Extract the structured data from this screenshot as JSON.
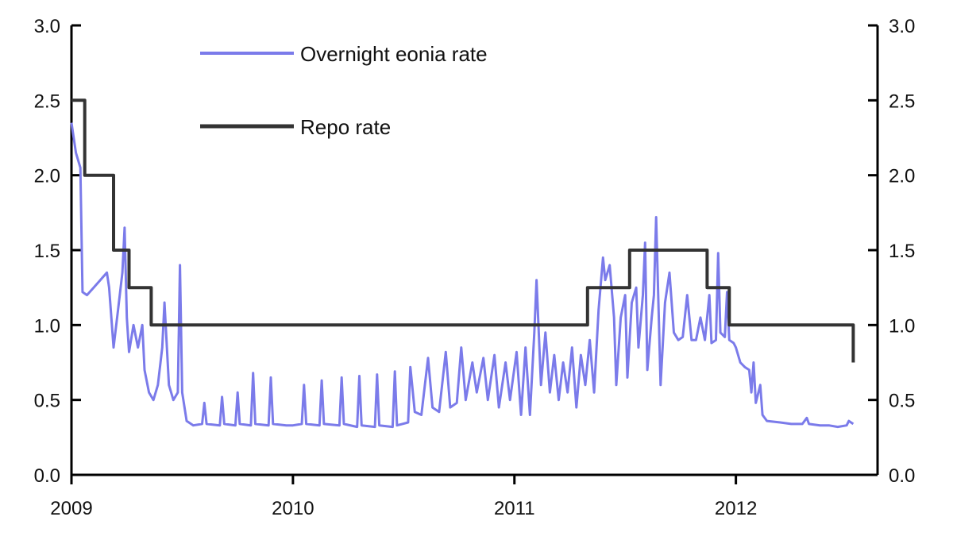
{
  "chart_data": {
    "type": "line",
    "title": "",
    "xlabel": "",
    "ylabel": "",
    "colors": {
      "eonia": "#7b7bea",
      "repo": "#333333"
    },
    "x_ticks": [
      {
        "label": "2009",
        "value": 2009.0
      },
      {
        "label": "2010",
        "value": 2010.0
      },
      {
        "label": "2011",
        "value": 2011.0
      },
      {
        "label": "2012",
        "value": 2012.0
      }
    ],
    "xlim": [
      2009.0,
      2012.55
    ],
    "ylim": [
      0,
      3
    ],
    "y_ticks": [
      "0.0",
      "0.5",
      "1.0",
      "1.5",
      "2.0",
      "2.5",
      "3.0"
    ],
    "y_ticks_right": [
      "0.0",
      "0.5",
      "1.0",
      "1.5",
      "2.0",
      "2.5",
      "3.0"
    ],
    "grid": false,
    "legend": {
      "position": "top-left"
    },
    "series": [
      {
        "name": "Overnight eonia rate",
        "key": "eonia",
        "step": false,
        "points": [
          [
            2009.0,
            2.35
          ],
          [
            2009.02,
            2.15
          ],
          [
            2009.04,
            2.05
          ],
          [
            2009.05,
            1.22
          ],
          [
            2009.07,
            1.2
          ],
          [
            2009.1,
            1.25
          ],
          [
            2009.13,
            1.3
          ],
          [
            2009.16,
            1.35
          ],
          [
            2009.17,
            1.25
          ],
          [
            2009.19,
            0.85
          ],
          [
            2009.21,
            1.1
          ],
          [
            2009.23,
            1.35
          ],
          [
            2009.24,
            1.65
          ],
          [
            2009.25,
            1.05
          ],
          [
            2009.26,
            0.82
          ],
          [
            2009.28,
            1.0
          ],
          [
            2009.3,
            0.85
          ],
          [
            2009.32,
            1.0
          ],
          [
            2009.33,
            0.7
          ],
          [
            2009.35,
            0.55
          ],
          [
            2009.37,
            0.5
          ],
          [
            2009.39,
            0.6
          ],
          [
            2009.41,
            0.85
          ],
          [
            2009.42,
            1.15
          ],
          [
            2009.44,
            0.6
          ],
          [
            2009.46,
            0.5
          ],
          [
            2009.48,
            0.55
          ],
          [
            2009.49,
            1.4
          ],
          [
            2009.5,
            0.55
          ],
          [
            2009.52,
            0.36
          ],
          [
            2009.55,
            0.33
          ],
          [
            2009.59,
            0.34
          ],
          [
            2009.6,
            0.48
          ],
          [
            2009.61,
            0.34
          ],
          [
            2009.67,
            0.33
          ],
          [
            2009.68,
            0.52
          ],
          [
            2009.69,
            0.34
          ],
          [
            2009.74,
            0.33
          ],
          [
            2009.75,
            0.55
          ],
          [
            2009.76,
            0.34
          ],
          [
            2009.81,
            0.33
          ],
          [
            2009.82,
            0.68
          ],
          [
            2009.83,
            0.34
          ],
          [
            2009.89,
            0.33
          ],
          [
            2009.9,
            0.65
          ],
          [
            2009.91,
            0.34
          ],
          [
            2009.97,
            0.33
          ],
          [
            2010.0,
            0.33
          ],
          [
            2010.04,
            0.34
          ],
          [
            2010.05,
            0.6
          ],
          [
            2010.06,
            0.34
          ],
          [
            2010.12,
            0.33
          ],
          [
            2010.13,
            0.63
          ],
          [
            2010.14,
            0.34
          ],
          [
            2010.21,
            0.33
          ],
          [
            2010.22,
            0.65
          ],
          [
            2010.23,
            0.34
          ],
          [
            2010.29,
            0.32
          ],
          [
            2010.3,
            0.66
          ],
          [
            2010.31,
            0.33
          ],
          [
            2010.37,
            0.32
          ],
          [
            2010.38,
            0.67
          ],
          [
            2010.39,
            0.33
          ],
          [
            2010.45,
            0.32
          ],
          [
            2010.46,
            0.69
          ],
          [
            2010.47,
            0.33
          ],
          [
            2010.52,
            0.35
          ],
          [
            2010.53,
            0.72
          ],
          [
            2010.55,
            0.42
          ],
          [
            2010.58,
            0.4
          ],
          [
            2010.61,
            0.78
          ],
          [
            2010.63,
            0.45
          ],
          [
            2010.66,
            0.42
          ],
          [
            2010.69,
            0.82
          ],
          [
            2010.71,
            0.45
          ],
          [
            2010.74,
            0.48
          ],
          [
            2010.76,
            0.85
          ],
          [
            2010.78,
            0.5
          ],
          [
            2010.81,
            0.75
          ],
          [
            2010.83,
            0.55
          ],
          [
            2010.86,
            0.78
          ],
          [
            2010.88,
            0.5
          ],
          [
            2010.91,
            0.8
          ],
          [
            2010.93,
            0.45
          ],
          [
            2010.96,
            0.75
          ],
          [
            2010.98,
            0.5
          ],
          [
            2011.01,
            0.82
          ],
          [
            2011.03,
            0.4
          ],
          [
            2011.05,
            0.85
          ],
          [
            2011.07,
            0.4
          ],
          [
            2011.09,
            0.95
          ],
          [
            2011.1,
            1.3
          ],
          [
            2011.12,
            0.6
          ],
          [
            2011.14,
            0.95
          ],
          [
            2011.16,
            0.55
          ],
          [
            2011.18,
            0.8
          ],
          [
            2011.2,
            0.5
          ],
          [
            2011.22,
            0.75
          ],
          [
            2011.24,
            0.55
          ],
          [
            2011.26,
            0.85
          ],
          [
            2011.28,
            0.45
          ],
          [
            2011.3,
            0.8
          ],
          [
            2011.32,
            0.6
          ],
          [
            2011.34,
            0.9
          ],
          [
            2011.36,
            0.55
          ],
          [
            2011.38,
            1.1
          ],
          [
            2011.4,
            1.45
          ],
          [
            2011.41,
            1.3
          ],
          [
            2011.43,
            1.4
          ],
          [
            2011.45,
            1.05
          ],
          [
            2011.46,
            0.6
          ],
          [
            2011.48,
            1.05
          ],
          [
            2011.5,
            1.2
          ],
          [
            2011.51,
            0.65
          ],
          [
            2011.53,
            1.15
          ],
          [
            2011.55,
            1.25
          ],
          [
            2011.56,
            0.85
          ],
          [
            2011.58,
            1.2
          ],
          [
            2011.59,
            1.55
          ],
          [
            2011.6,
            0.7
          ],
          [
            2011.62,
            1.05
          ],
          [
            2011.63,
            1.2
          ],
          [
            2011.64,
            1.72
          ],
          [
            2011.66,
            0.6
          ],
          [
            2011.68,
            1.15
          ],
          [
            2011.7,
            1.35
          ],
          [
            2011.72,
            0.95
          ],
          [
            2011.74,
            0.9
          ],
          [
            2011.76,
            0.92
          ],
          [
            2011.78,
            1.2
          ],
          [
            2011.8,
            0.9
          ],
          [
            2011.82,
            0.9
          ],
          [
            2011.84,
            1.05
          ],
          [
            2011.86,
            0.9
          ],
          [
            2011.88,
            1.2
          ],
          [
            2011.89,
            0.88
          ],
          [
            2011.91,
            0.9
          ],
          [
            2011.92,
            1.48
          ],
          [
            2011.93,
            0.95
          ],
          [
            2011.95,
            0.92
          ],
          [
            2011.96,
            1.22
          ],
          [
            2011.97,
            0.9
          ],
          [
            2011.99,
            0.88
          ],
          [
            2012.0,
            0.85
          ],
          [
            2012.02,
            0.75
          ],
          [
            2012.04,
            0.72
          ],
          [
            2012.06,
            0.7
          ],
          [
            2012.07,
            0.55
          ],
          [
            2012.08,
            0.75
          ],
          [
            2012.09,
            0.48
          ],
          [
            2012.11,
            0.6
          ],
          [
            2012.12,
            0.4
          ],
          [
            2012.14,
            0.36
          ],
          [
            2012.2,
            0.35
          ],
          [
            2012.25,
            0.34
          ],
          [
            2012.3,
            0.34
          ],
          [
            2012.32,
            0.38
          ],
          [
            2012.33,
            0.34
          ],
          [
            2012.38,
            0.33
          ],
          [
            2012.42,
            0.33
          ],
          [
            2012.46,
            0.32
          ],
          [
            2012.5,
            0.33
          ],
          [
            2012.51,
            0.36
          ],
          [
            2012.53,
            0.34
          ]
        ]
      },
      {
        "name": "Repo rate",
        "key": "repo",
        "step": true,
        "points": [
          [
            2009.0,
            2.5
          ],
          [
            2009.06,
            2.0
          ],
          [
            2009.19,
            1.5
          ],
          [
            2009.26,
            1.25
          ],
          [
            2009.36,
            1.0
          ],
          [
            2011.33,
            1.25
          ],
          [
            2011.52,
            1.5
          ],
          [
            2011.87,
            1.25
          ],
          [
            2011.97,
            1.0
          ],
          [
            2012.53,
            0.75
          ]
        ]
      }
    ]
  }
}
